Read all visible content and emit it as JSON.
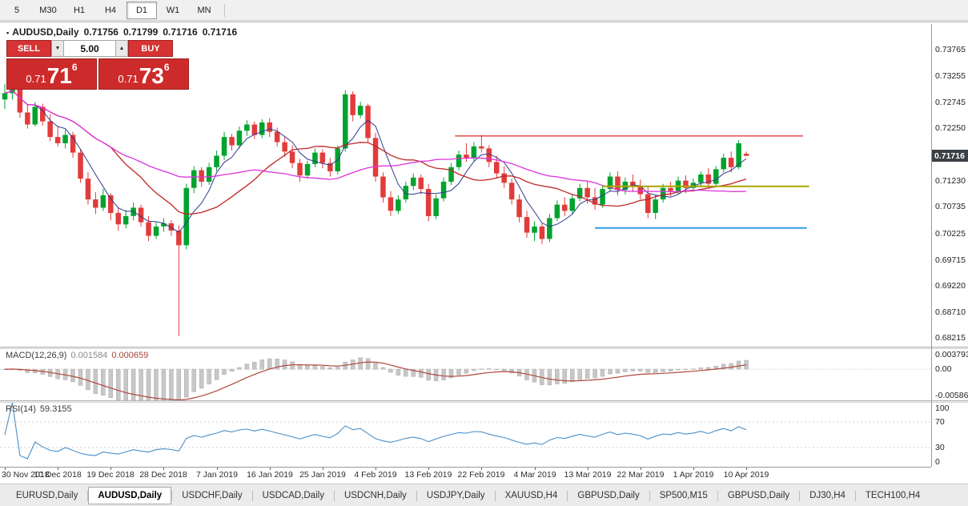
{
  "toolbar": {
    "timeframes": [
      "5",
      "M30",
      "H1",
      "H4",
      "D1",
      "W1",
      "MN"
    ],
    "active_timeframe": "D1"
  },
  "chart_header": {
    "bullet": "▪",
    "symbol": "AUDUSD,Daily",
    "open": "0.71756",
    "high": "0.71799",
    "low": "0.71716",
    "close": "0.71716"
  },
  "trade_panel": {
    "sell_label": "SELL",
    "buy_label": "BUY",
    "volume": "5.00",
    "spinner_down": "▼",
    "spinner_up": "▲",
    "bid": {
      "prefix": "0.71",
      "big": "71",
      "sup": "6"
    },
    "ask": {
      "prefix": "0.71",
      "big": "73",
      "sup": "6"
    }
  },
  "price_scale_labels": [
    "0.73765",
    "0.73255",
    "0.72745",
    "0.72250",
    "0.71740",
    "0.71230",
    "0.70735",
    "0.70225",
    "0.69715",
    "0.69220",
    "0.68710",
    "0.68215"
  ],
  "price_tag": "0.71716",
  "macd_panel": {
    "title": "MACD(12,26,9)",
    "value1": "0.001584",
    "value2": "0.000659",
    "scale_top": "0.003793",
    "scale_zero": "0.00",
    "scale_bottom": "-0.005864"
  },
  "rsi_panel": {
    "title": "RSI(14)",
    "value": "59.3155",
    "scale": [
      "100",
      "70",
      "30",
      "0"
    ]
  },
  "tabs": [
    {
      "label": "EURUSD,Daily",
      "active": false
    },
    {
      "label": "AUDUSD,Daily",
      "active": true
    },
    {
      "label": "USDCHF,Daily",
      "active": false
    },
    {
      "label": "USDCAD,Daily",
      "active": false
    },
    {
      "label": "USDCNH,Daily",
      "active": false
    },
    {
      "label": "USDJPY,Daily",
      "active": false
    },
    {
      "label": "XAUUSD,H4",
      "active": false
    },
    {
      "label": "GBPUSD,Daily",
      "active": false
    },
    {
      "label": "SP500,M15",
      "active": false
    },
    {
      "label": "GBPUSD,Daily",
      "active": false
    },
    {
      "label": "DJ30,H4",
      "active": false
    },
    {
      "label": "TECH100,H4",
      "active": false
    }
  ],
  "chart_data": {
    "type": "candlestick",
    "title": "AUDUSD Daily",
    "y_range": {
      "min": 0.6805,
      "max": 0.7425
    },
    "up_color": "#00a32e",
    "down_color": "#e23b3b",
    "x_axis_labels": [
      {
        "index": 0,
        "label": "30 Nov 2018"
      },
      {
        "index": 7,
        "label": "10 Dec 2018"
      },
      {
        "index": 14,
        "label": "19 Dec 2018"
      },
      {
        "index": 21,
        "label": "28 Dec 2018"
      },
      {
        "index": 28,
        "label": "7 Jan 2019"
      },
      {
        "index": 35,
        "label": "16 Jan 2019"
      },
      {
        "index": 42,
        "label": "25 Jan 2019"
      },
      {
        "index": 49,
        "label": "4 Feb 2019"
      },
      {
        "index": 56,
        "label": "13 Feb 2019"
      },
      {
        "index": 63,
        "label": "22 Feb 2019"
      },
      {
        "index": 70,
        "label": "4 Mar 2019"
      },
      {
        "index": 77,
        "label": "13 Mar 2019"
      },
      {
        "index": 84,
        "label": "22 Mar 2019"
      },
      {
        "index": 91,
        "label": "1 Apr 2019"
      },
      {
        "index": 98,
        "label": "10 Apr 2019"
      }
    ],
    "ohlc": [
      [
        0.728,
        0.731,
        0.7262,
        0.7292
      ],
      [
        0.7292,
        0.7318,
        0.728,
        0.7302
      ],
      [
        0.7302,
        0.7308,
        0.7245,
        0.7255
      ],
      [
        0.7255,
        0.727,
        0.7224,
        0.7232
      ],
      [
        0.7232,
        0.7275,
        0.7228,
        0.7266
      ],
      [
        0.7266,
        0.7272,
        0.723,
        0.7238
      ],
      [
        0.7238,
        0.7252,
        0.72,
        0.7208
      ],
      [
        0.7208,
        0.723,
        0.719,
        0.7196
      ],
      [
        0.7196,
        0.7222,
        0.7186,
        0.7212
      ],
      [
        0.7212,
        0.7218,
        0.7168,
        0.7178
      ],
      [
        0.7178,
        0.7184,
        0.712,
        0.7128
      ],
      [
        0.7128,
        0.714,
        0.7078,
        0.7088
      ],
      [
        0.7088,
        0.7102,
        0.706,
        0.7072
      ],
      [
        0.7072,
        0.7108,
        0.7066,
        0.7096
      ],
      [
        0.7096,
        0.71,
        0.7048,
        0.7062
      ],
      [
        0.7062,
        0.7072,
        0.7028,
        0.704
      ],
      [
        0.704,
        0.7068,
        0.7032,
        0.7056
      ],
      [
        0.7056,
        0.7082,
        0.7048,
        0.7072
      ],
      [
        0.7072,
        0.7078,
        0.7036,
        0.7044
      ],
      [
        0.7044,
        0.7056,
        0.7008,
        0.7018
      ],
      [
        0.7018,
        0.7044,
        0.7012,
        0.7036
      ],
      [
        0.7036,
        0.7052,
        0.7026,
        0.7042
      ],
      [
        0.7042,
        0.7048,
        0.7018,
        0.7028
      ],
      [
        0.7028,
        0.7038,
        0.6825,
        0.7
      ],
      [
        0.7,
        0.7118,
        0.6992,
        0.711
      ],
      [
        0.711,
        0.7152,
        0.71,
        0.7144
      ],
      [
        0.7144,
        0.715,
        0.7112,
        0.7122
      ],
      [
        0.7122,
        0.7158,
        0.7116,
        0.715
      ],
      [
        0.715,
        0.7182,
        0.7142,
        0.7172
      ],
      [
        0.7172,
        0.7218,
        0.7164,
        0.7208
      ],
      [
        0.7208,
        0.7214,
        0.7182,
        0.7192
      ],
      [
        0.7192,
        0.7228,
        0.7186,
        0.722
      ],
      [
        0.722,
        0.724,
        0.721,
        0.7232
      ],
      [
        0.7232,
        0.7238,
        0.7204,
        0.7212
      ],
      [
        0.7212,
        0.7242,
        0.7206,
        0.7236
      ],
      [
        0.7236,
        0.7244,
        0.7208,
        0.7218
      ],
      [
        0.7218,
        0.7226,
        0.719,
        0.7198
      ],
      [
        0.7198,
        0.721,
        0.717,
        0.718
      ],
      [
        0.718,
        0.7192,
        0.7148,
        0.7158
      ],
      [
        0.7158,
        0.7166,
        0.7122,
        0.7134
      ],
      [
        0.7134,
        0.7162,
        0.7128,
        0.7156
      ],
      [
        0.7156,
        0.7186,
        0.715,
        0.7178
      ],
      [
        0.7178,
        0.7184,
        0.7148,
        0.7158
      ],
      [
        0.7158,
        0.7168,
        0.7132,
        0.7142
      ],
      [
        0.7142,
        0.7192,
        0.7136,
        0.7186
      ],
      [
        0.7186,
        0.7298,
        0.718,
        0.729
      ],
      [
        0.729,
        0.7296,
        0.7238,
        0.725
      ],
      [
        0.725,
        0.7276,
        0.7244,
        0.7268
      ],
      [
        0.7268,
        0.7272,
        0.7196,
        0.7206
      ],
      [
        0.7206,
        0.7216,
        0.7122,
        0.7132
      ],
      [
        0.7132,
        0.714,
        0.7082,
        0.7092
      ],
      [
        0.7092,
        0.7104,
        0.7056,
        0.7066
      ],
      [
        0.7066,
        0.7096,
        0.706,
        0.7088
      ],
      [
        0.7088,
        0.7122,
        0.7082,
        0.7114
      ],
      [
        0.7114,
        0.7138,
        0.7106,
        0.713
      ],
      [
        0.713,
        0.7136,
        0.7098,
        0.7108
      ],
      [
        0.7108,
        0.7118,
        0.7046,
        0.7056
      ],
      [
        0.7056,
        0.7098,
        0.705,
        0.709
      ],
      [
        0.709,
        0.713,
        0.7084,
        0.7122
      ],
      [
        0.7122,
        0.7158,
        0.7116,
        0.715
      ],
      [
        0.715,
        0.7182,
        0.7144,
        0.7174
      ],
      [
        0.7174,
        0.7196,
        0.716,
        0.7168
      ],
      [
        0.7168,
        0.7198,
        0.7162,
        0.719
      ],
      [
        0.719,
        0.7212,
        0.7178,
        0.7186
      ],
      [
        0.7186,
        0.7192,
        0.715,
        0.716
      ],
      [
        0.716,
        0.7172,
        0.7128,
        0.7138
      ],
      [
        0.7138,
        0.7152,
        0.711,
        0.712
      ],
      [
        0.712,
        0.7128,
        0.7078,
        0.7088
      ],
      [
        0.7088,
        0.7098,
        0.7044,
        0.7054
      ],
      [
        0.7054,
        0.7066,
        0.7014,
        0.7024
      ],
      [
        0.7024,
        0.7046,
        0.7008,
        0.7036
      ],
      [
        0.7036,
        0.7042,
        0.7002,
        0.7012
      ],
      [
        0.7012,
        0.706,
        0.7006,
        0.7052
      ],
      [
        0.7052,
        0.7086,
        0.7046,
        0.7078
      ],
      [
        0.7078,
        0.7092,
        0.7056,
        0.7066
      ],
      [
        0.7066,
        0.7098,
        0.706,
        0.709
      ],
      [
        0.709,
        0.7118,
        0.7084,
        0.711
      ],
      [
        0.711,
        0.7122,
        0.708,
        0.7092
      ],
      [
        0.7092,
        0.711,
        0.7068,
        0.7078
      ],
      [
        0.7078,
        0.7116,
        0.7072,
        0.7108
      ],
      [
        0.7108,
        0.714,
        0.7102,
        0.7132
      ],
      [
        0.7132,
        0.7142,
        0.7096,
        0.7106
      ],
      [
        0.7106,
        0.713,
        0.7098,
        0.7122
      ],
      [
        0.7122,
        0.7136,
        0.7102,
        0.7112
      ],
      [
        0.7112,
        0.7126,
        0.7088,
        0.7098
      ],
      [
        0.7098,
        0.7112,
        0.7052,
        0.7062
      ],
      [
        0.7062,
        0.7096,
        0.705,
        0.7088
      ],
      [
        0.7088,
        0.7118,
        0.7082,
        0.711
      ],
      [
        0.711,
        0.7122,
        0.7094,
        0.7104
      ],
      [
        0.7104,
        0.7132,
        0.7098,
        0.7124
      ],
      [
        0.7124,
        0.7134,
        0.71,
        0.711
      ],
      [
        0.711,
        0.7128,
        0.7104,
        0.712
      ],
      [
        0.712,
        0.7142,
        0.7114,
        0.7136
      ],
      [
        0.7136,
        0.7148,
        0.711,
        0.7118
      ],
      [
        0.7118,
        0.7152,
        0.7112,
        0.7146
      ],
      [
        0.7146,
        0.7176,
        0.714,
        0.7168
      ],
      [
        0.7168,
        0.718,
        0.714,
        0.715
      ],
      [
        0.715,
        0.7202,
        0.7146,
        0.7196
      ],
      [
        0.71756,
        0.71799,
        0.71716,
        0.71716
      ]
    ],
    "moving_averages": [
      {
        "period": 5,
        "color": "#2f3b8f",
        "width": 1
      },
      {
        "period": 15,
        "color": "#c22525",
        "width": 1.3
      },
      {
        "period": 34,
        "color": "#dd33dd",
        "width": 1.3
      }
    ],
    "levels": [
      {
        "price": 0.721,
        "start_index": 59.5,
        "end_index": 105.5,
        "color": "#e03c3c",
        "width": 1.4
      },
      {
        "price": 0.7113,
        "start_index": 79,
        "end_index": 106.3,
        "color": "#a8a600",
        "width": 2
      },
      {
        "price": 0.7033,
        "start_index": 78,
        "end_index": 106,
        "color": "#2e9be6",
        "width": 2
      }
    ],
    "macd": {
      "fast": 12,
      "slow": 26,
      "signal": 9,
      "range": {
        "min": -0.005864,
        "max": 0.003793
      },
      "histogram_color": "#c7c7c7",
      "signal_color": "#b0483f"
    },
    "rsi": {
      "period": 14,
      "range": {
        "min": 0,
        "max": 100
      },
      "color": "#4a8fc7",
      "guide_levels": [
        70,
        30
      ]
    }
  }
}
